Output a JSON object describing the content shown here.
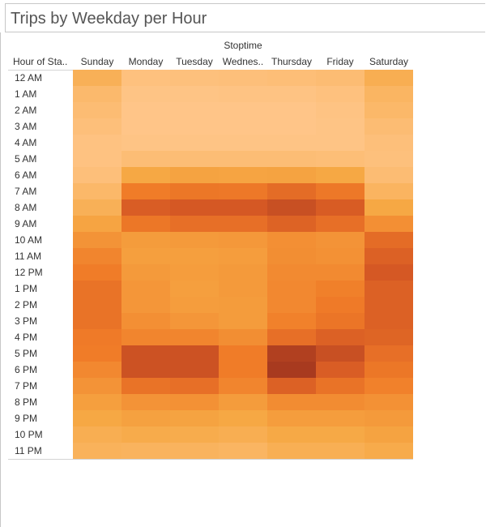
{
  "title": "Trips by Weekday per Hour",
  "chart_data": {
    "type": "heatmap",
    "title": "Trips by Weekday per Hour",
    "column_group_label": "Stoptime",
    "row_field_label": "Hour of Sta..",
    "columns": [
      "Sunday",
      "Monday",
      "Tuesday",
      "Wednes..",
      "Thursday",
      "Friday",
      "Saturday"
    ],
    "rows": [
      "12 AM",
      "1 AM",
      "2 AM",
      "3 AM",
      "4 AM",
      "5 AM",
      "6 AM",
      "7 AM",
      "8 AM",
      "9 AM",
      "10 AM",
      "11 AM",
      "12 PM",
      "1 PM",
      "2 PM",
      "3 PM",
      "4 PM",
      "5 PM",
      "6 PM",
      "7 PM",
      "8 PM",
      "9 PM",
      "10 PM",
      "11 PM"
    ],
    "values": [
      [
        0.22,
        0.05,
        0.06,
        0.07,
        0.08,
        0.1,
        0.24
      ],
      [
        0.13,
        0.02,
        0.02,
        0.03,
        0.03,
        0.05,
        0.17
      ],
      [
        0.1,
        0.01,
        0.01,
        0.01,
        0.01,
        0.03,
        0.14
      ],
      [
        0.07,
        0.01,
        0.01,
        0.01,
        0.01,
        0.02,
        0.1
      ],
      [
        0.04,
        0.02,
        0.02,
        0.02,
        0.02,
        0.02,
        0.07
      ],
      [
        0.04,
        0.09,
        0.09,
        0.09,
        0.09,
        0.08,
        0.06
      ],
      [
        0.07,
        0.3,
        0.33,
        0.32,
        0.33,
        0.3,
        0.1
      ],
      [
        0.14,
        0.55,
        0.58,
        0.57,
        0.64,
        0.57,
        0.18
      ],
      [
        0.22,
        0.72,
        0.75,
        0.75,
        0.82,
        0.73,
        0.3
      ],
      [
        0.32,
        0.58,
        0.62,
        0.62,
        0.69,
        0.62,
        0.44
      ],
      [
        0.42,
        0.37,
        0.38,
        0.39,
        0.44,
        0.42,
        0.64
      ],
      [
        0.5,
        0.35,
        0.35,
        0.36,
        0.45,
        0.43,
        0.7
      ],
      [
        0.55,
        0.38,
        0.36,
        0.38,
        0.47,
        0.47,
        0.75
      ],
      [
        0.6,
        0.4,
        0.35,
        0.38,
        0.48,
        0.53,
        0.7
      ],
      [
        0.6,
        0.4,
        0.36,
        0.37,
        0.48,
        0.56,
        0.7
      ],
      [
        0.6,
        0.44,
        0.4,
        0.37,
        0.52,
        0.59,
        0.7
      ],
      [
        0.56,
        0.5,
        0.5,
        0.45,
        0.62,
        0.7,
        0.68
      ],
      [
        0.55,
        0.8,
        0.8,
        0.55,
        0.95,
        0.82,
        0.62
      ],
      [
        0.48,
        0.8,
        0.8,
        0.55,
        1.0,
        0.72,
        0.58
      ],
      [
        0.42,
        0.6,
        0.62,
        0.5,
        0.7,
        0.6,
        0.52
      ],
      [
        0.35,
        0.42,
        0.43,
        0.37,
        0.46,
        0.46,
        0.43
      ],
      [
        0.3,
        0.34,
        0.33,
        0.3,
        0.36,
        0.36,
        0.38
      ],
      [
        0.24,
        0.27,
        0.26,
        0.24,
        0.29,
        0.29,
        0.33
      ],
      [
        0.2,
        0.19,
        0.19,
        0.17,
        0.23,
        0.23,
        0.27
      ]
    ],
    "value_scale": "relative trip count, 0 = lightest, 1 = darkest",
    "color_low": "#ffc68a",
    "color_high": "#a83a1f"
  }
}
